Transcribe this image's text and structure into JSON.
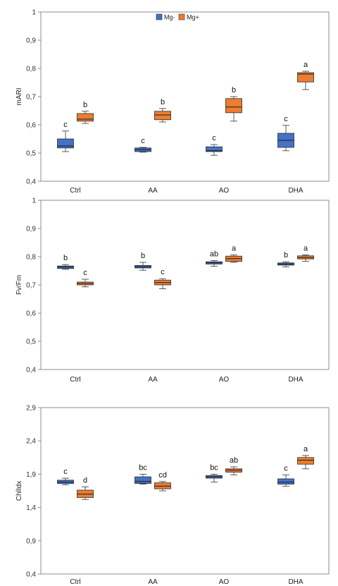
{
  "colors": {
    "mg_minus": "#4472C4",
    "mg_plus": "#ED7D31"
  },
  "legend": {
    "mg_minus": "Mg-",
    "mg_plus": "Mg+"
  },
  "chart_data": [
    {
      "type": "box",
      "ylabel": "mARI",
      "ylim": [
        0.4,
        1.0
      ],
      "yticks": [
        "0,4",
        "0,5",
        "0,6",
        "0,7",
        "0,8",
        "0,9",
        "1"
      ],
      "categories": [
        "Ctrl",
        "AA",
        "AO",
        "DHA"
      ],
      "series": [
        {
          "name": "Mg-",
          "boxes": [
            {
              "min": 0.505,
              "q1": 0.518,
              "median": 0.525,
              "q3": 0.55,
              "max": 0.578,
              "label": "c"
            },
            {
              "min": 0.503,
              "q1": 0.505,
              "median": 0.512,
              "q3": 0.518,
              "max": 0.52,
              "label": "c"
            },
            {
              "min": 0.492,
              "q1": 0.505,
              "median": 0.508,
              "q3": 0.522,
              "max": 0.53,
              "label": "c"
            },
            {
              "min": 0.508,
              "q1": 0.52,
              "median": 0.545,
              "q3": 0.57,
              "max": 0.598,
              "label": "c"
            }
          ]
        },
        {
          "name": "Mg+",
          "boxes": [
            {
              "min": 0.605,
              "q1": 0.613,
              "median": 0.62,
              "q3": 0.64,
              "max": 0.648,
              "label": "b"
            },
            {
              "min": 0.61,
              "q1": 0.618,
              "median": 0.635,
              "q3": 0.648,
              "max": 0.658,
              "label": "b"
            },
            {
              "min": 0.613,
              "q1": 0.643,
              "median": 0.663,
              "q3": 0.693,
              "max": 0.7,
              "label": "b"
            },
            {
              "min": 0.725,
              "q1": 0.752,
              "median": 0.78,
              "q3": 0.785,
              "max": 0.79,
              "label": "a"
            }
          ]
        }
      ],
      "legend_position": "top-center"
    },
    {
      "type": "box",
      "ylabel": "Fv/Fm",
      "ylim": [
        0.4,
        1.0
      ],
      "yticks": [
        "0,4",
        "0,5",
        "0,6",
        "0,7",
        "0,8",
        "0,9",
        "1"
      ],
      "categories": [
        "Ctrl",
        "AA",
        "AO",
        "DHA"
      ],
      "series": [
        {
          "name": "Mg-",
          "boxes": [
            {
              "min": 0.755,
              "q1": 0.758,
              "median": 0.763,
              "q3": 0.767,
              "max": 0.772,
              "label": "b"
            },
            {
              "min": 0.752,
              "q1": 0.76,
              "median": 0.764,
              "q3": 0.769,
              "max": 0.78,
              "label": "b"
            },
            {
              "min": 0.766,
              "q1": 0.774,
              "median": 0.778,
              "q3": 0.782,
              "max": 0.786,
              "label": "ab"
            },
            {
              "min": 0.764,
              "q1": 0.77,
              "median": 0.774,
              "q3": 0.778,
              "max": 0.782,
              "label": "b"
            }
          ]
        },
        {
          "name": "Mg+",
          "boxes": [
            {
              "min": 0.693,
              "q1": 0.7,
              "median": 0.705,
              "q3": 0.71,
              "max": 0.72,
              "label": "c"
            },
            {
              "min": 0.686,
              "q1": 0.7,
              "median": 0.708,
              "q3": 0.717,
              "max": 0.722,
              "label": "c"
            },
            {
              "min": 0.78,
              "q1": 0.783,
              "median": 0.793,
              "q3": 0.802,
              "max": 0.806,
              "label": "a"
            },
            {
              "min": 0.784,
              "q1": 0.792,
              "median": 0.797,
              "q3": 0.803,
              "max": 0.806,
              "label": "a"
            }
          ]
        }
      ]
    },
    {
      "type": "box",
      "ylabel": "ChlIdx",
      "ylim": [
        0.4,
        2.9
      ],
      "yticks": [
        "0,4",
        "0,9",
        "1,4",
        "1,9",
        "2,4",
        "2,9"
      ],
      "categories": [
        "Ctrl",
        "AA",
        "AO",
        "DHA"
      ],
      "series": [
        {
          "name": "Mg-",
          "boxes": [
            {
              "min": 1.74,
              "q1": 1.76,
              "median": 1.78,
              "q3": 1.81,
              "max": 1.84,
              "label": "c"
            },
            {
              "min": 1.75,
              "q1": 1.76,
              "median": 1.79,
              "q3": 1.86,
              "max": 1.9,
              "label": "bc"
            },
            {
              "min": 1.78,
              "q1": 1.84,
              "median": 1.86,
              "q3": 1.88,
              "max": 1.9,
              "label": "bc"
            },
            {
              "min": 1.72,
              "q1": 1.75,
              "median": 1.78,
              "q3": 1.83,
              "max": 1.89,
              "label": "c"
            }
          ]
        },
        {
          "name": "Mg+",
          "boxes": [
            {
              "min": 1.52,
              "q1": 1.55,
              "median": 1.6,
              "q3": 1.66,
              "max": 1.71,
              "label": "d"
            },
            {
              "min": 1.65,
              "q1": 1.68,
              "median": 1.72,
              "q3": 1.77,
              "max": 1.79,
              "label": "cd"
            },
            {
              "min": 1.89,
              "q1": 1.93,
              "median": 1.96,
              "q3": 1.98,
              "max": 2.01,
              "label": "ab"
            },
            {
              "min": 1.98,
              "q1": 2.05,
              "median": 2.11,
              "q3": 2.15,
              "max": 2.18,
              "label": "a"
            }
          ]
        }
      ]
    }
  ]
}
